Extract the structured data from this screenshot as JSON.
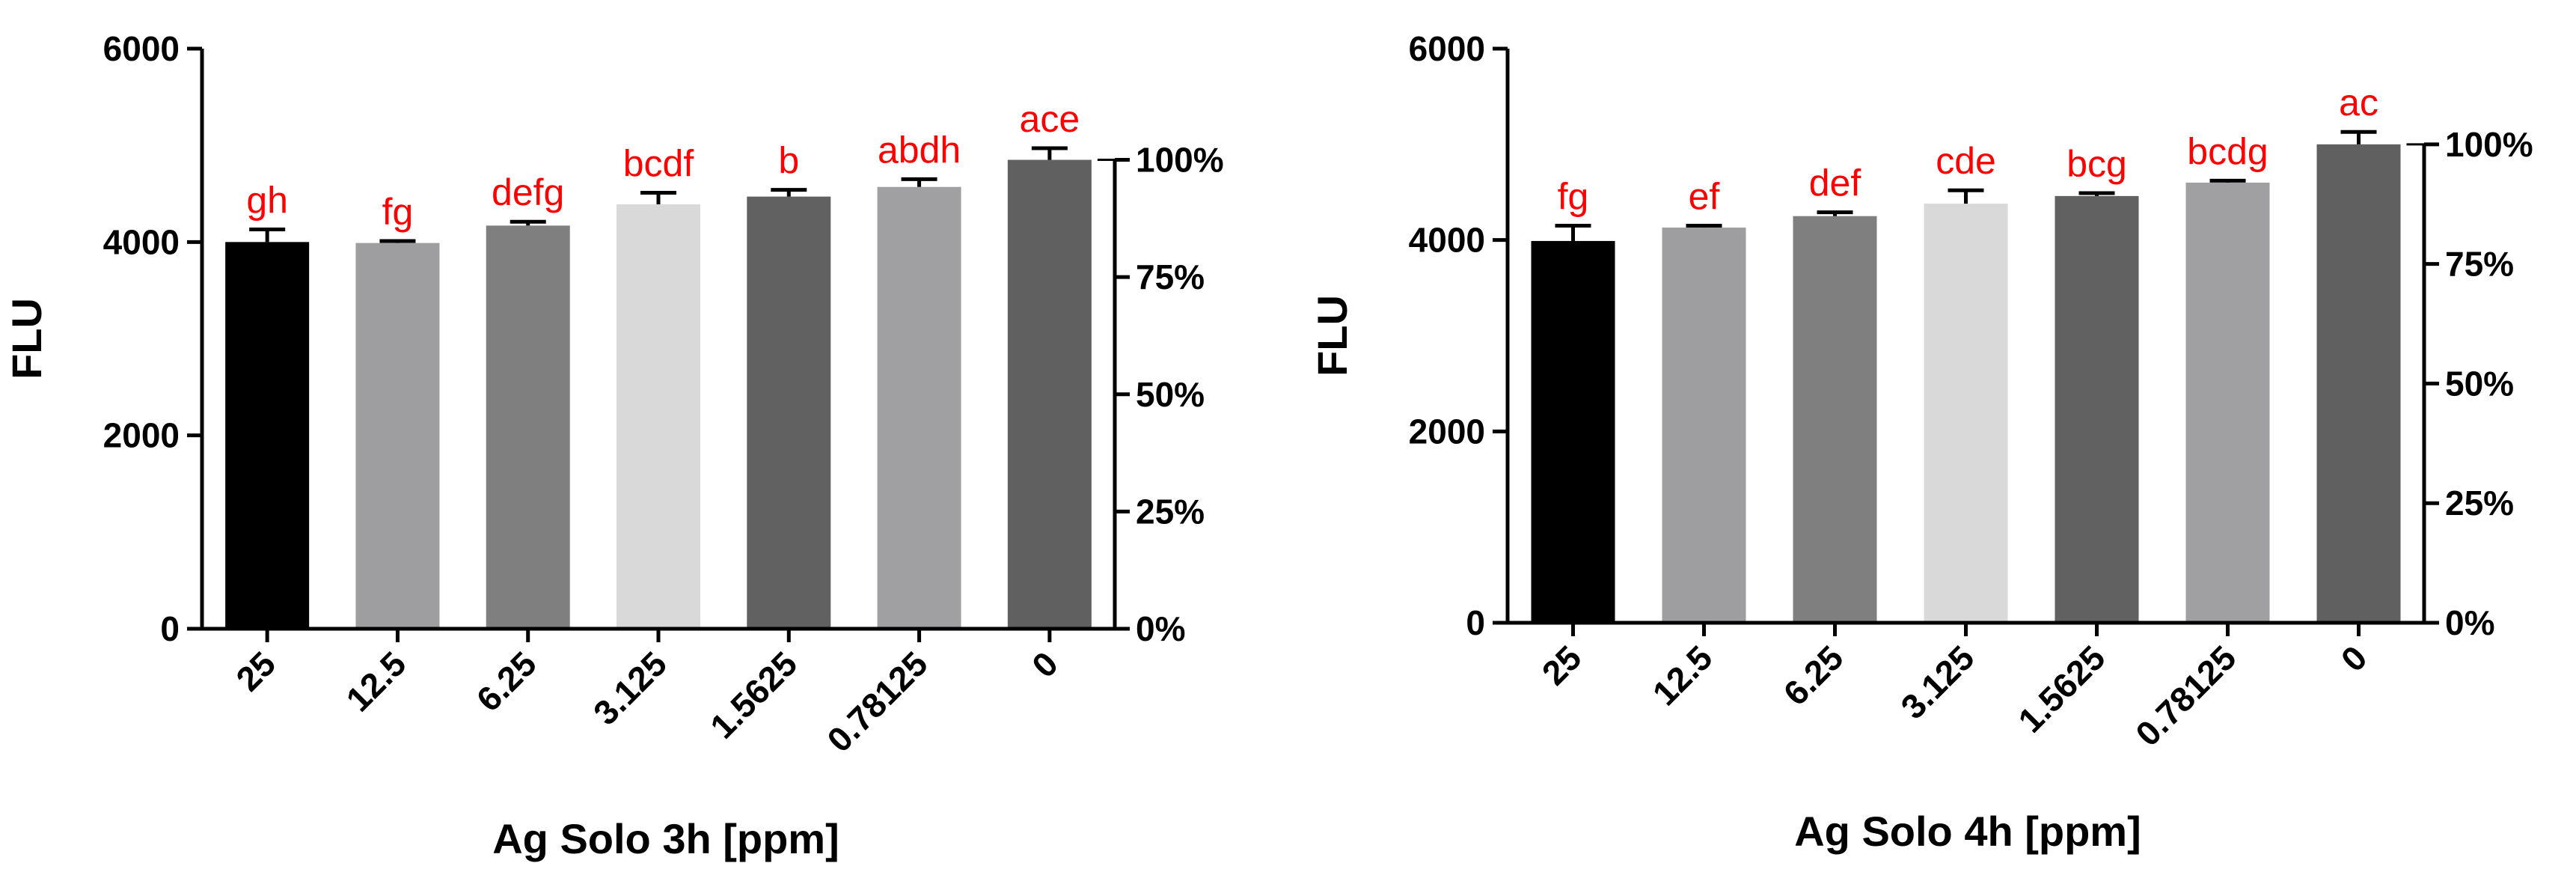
{
  "chart_data": [
    {
      "type": "bar",
      "categories": [
        "25",
        "12.5",
        "6.25",
        "3.125",
        "1.5625",
        "0.78125",
        "0"
      ],
      "values": [
        4000,
        3990,
        4170,
        4390,
        4470,
        4570,
        4850
      ],
      "errors": [
        130,
        20,
        40,
        120,
        70,
        80,
        120
      ],
      "bar_colors": [
        "#000000",
        "#9e9ea0",
        "#7f7f7f",
        "#d9d9d9",
        "#616161",
        "#a0a0a2",
        "#606060"
      ],
      "significance": [
        "gh",
        "fg",
        "defg",
        "bcdf",
        "b",
        "abdh",
        "ace"
      ],
      "xlabel": "Ag Solo 3h [ppm]",
      "ylabel": "FLU",
      "ylim": [
        0,
        6000
      ],
      "yticks": [
        "0",
        "2000",
        "4000",
        "6000"
      ],
      "ytick_values": [
        0,
        2000,
        4000,
        6000
      ],
      "y2ticks": [
        "0%",
        "25%",
        "50%",
        "75%",
        "100%"
      ],
      "y2_reference": 4850
    },
    {
      "type": "bar",
      "categories": [
        "25",
        "12.5",
        "6.25",
        "3.125",
        "1.5625",
        "0.78125",
        "0"
      ],
      "values": [
        3990,
        4130,
        4250,
        4380,
        4460,
        4600,
        5000
      ],
      "errors": [
        160,
        20,
        40,
        140,
        30,
        20,
        130
      ],
      "bar_colors": [
        "#000000",
        "#9e9ea0",
        "#7f7f7f",
        "#d9d9d9",
        "#616161",
        "#a0a0a2",
        "#606060"
      ],
      "significance": [
        "fg",
        "ef",
        "def",
        "cde",
        "bcg",
        "bcdg",
        "ac"
      ],
      "xlabel": "Ag Solo 4h [ppm]",
      "ylabel": "FLU",
      "ylim": [
        0,
        6000
      ],
      "yticks": [
        "0",
        "2000",
        "4000",
        "6000"
      ],
      "ytick_values": [
        0,
        2000,
        4000,
        6000
      ],
      "y2ticks": [
        "0%",
        "25%",
        "50%",
        "75%",
        "100%"
      ],
      "y2_reference": 5000
    }
  ]
}
